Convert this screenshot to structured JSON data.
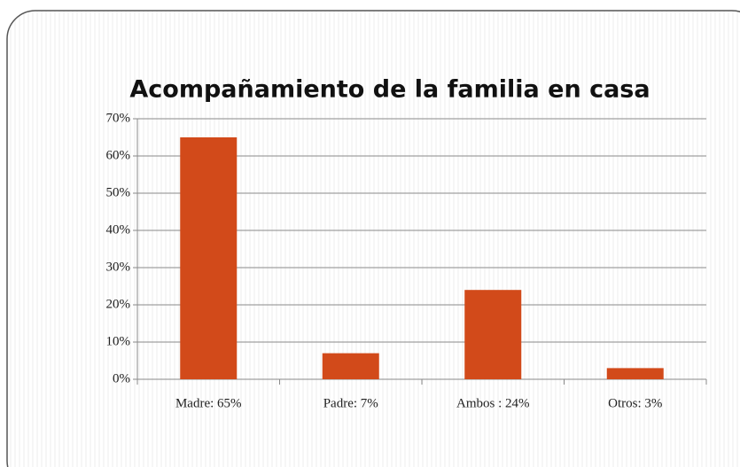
{
  "chart_data": {
    "type": "bar",
    "title": "Acompañamiento de la familia en casa",
    "categories": [
      "Madre: 65%",
      "Padre: 7%",
      "Ambos : 24%",
      "Otros: 3%"
    ],
    "values": [
      65,
      7,
      24,
      3
    ],
    "color": "#d24a1a",
    "ylim": [
      0,
      70
    ],
    "yticks": [
      {
        "value": 0,
        "label": "0%"
      },
      {
        "value": 10,
        "label": "10%"
      },
      {
        "value": 20,
        "label": "20%"
      },
      {
        "value": 30,
        "label": "30%"
      },
      {
        "value": 40,
        "label": "40%"
      },
      {
        "value": 50,
        "label": "50%"
      },
      {
        "value": 60,
        "label": "60%"
      },
      {
        "value": 70,
        "label": "70%"
      }
    ],
    "grid": true
  }
}
